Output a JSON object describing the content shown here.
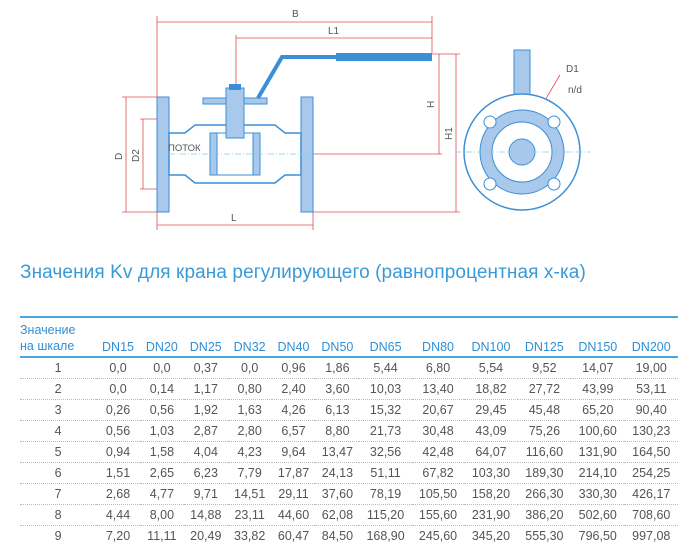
{
  "drawing": {
    "labels": {
      "B": "B",
      "L1": "L1",
      "H": "H",
      "H1": "H1",
      "D": "D",
      "D2": "D2",
      "flow": "ПОТОК",
      "L": "L",
      "D1": "D1",
      "nd": "n/d"
    },
    "colors": {
      "body": "#3b8fd6",
      "fill": "#a9c9ec",
      "dimension": "#e04a5a"
    }
  },
  "title": "Значения Kv для крана регулирующего (равнопроцентная х-ка)",
  "table": {
    "header_first_line1": "Значение",
    "header_first_line2": "на шкале",
    "columns": [
      "DN15",
      "DN20",
      "DN25",
      "DN32",
      "DN40",
      "DN50",
      "DN65",
      "DN80",
      "DN100",
      "DN125",
      "DN150",
      "DN200"
    ],
    "rows": [
      {
        "scale": "1",
        "values": [
          "0,0",
          "0,0",
          "0,37",
          "0,0",
          "0,96",
          "1,86",
          "5,44",
          "6,80",
          "5,54",
          "9,52",
          "14,07",
          "19,00"
        ]
      },
      {
        "scale": "2",
        "values": [
          "0,0",
          "0,14",
          "1,17",
          "0,80",
          "2,40",
          "3,60",
          "10,03",
          "13,40",
          "18,82",
          "27,72",
          "43,99",
          "53,11"
        ]
      },
      {
        "scale": "3",
        "values": [
          "0,26",
          "0,56",
          "1,92",
          "1,63",
          "4,26",
          "6,13",
          "15,32",
          "20,67",
          "29,45",
          "45,48",
          "65,20",
          "90,40"
        ]
      },
      {
        "scale": "4",
        "values": [
          "0,56",
          "1,03",
          "2,87",
          "2,80",
          "6,57",
          "8,80",
          "21,73",
          "30,48",
          "43,09",
          "75,26",
          "100,60",
          "130,23"
        ]
      },
      {
        "scale": "5",
        "values": [
          "0,94",
          "1,58",
          "4,04",
          "4,23",
          "9,64",
          "13,47",
          "32,56",
          "42,48",
          "64,07",
          "116,60",
          "131,90",
          "164,50"
        ]
      },
      {
        "scale": "6",
        "values": [
          "1,51",
          "2,65",
          "6,23",
          "7,79",
          "17,87",
          "24,13",
          "51,11",
          "67,82",
          "103,30",
          "189,30",
          "214,10",
          "254,25"
        ]
      },
      {
        "scale": "7",
        "values": [
          "2,68",
          "4,77",
          "9,71",
          "14,51",
          "29,11",
          "37,60",
          "78,19",
          "105,50",
          "158,20",
          "266,30",
          "330,30",
          "426,17"
        ]
      },
      {
        "scale": "8",
        "values": [
          "4,44",
          "8,00",
          "14,88",
          "23,11",
          "44,60",
          "62,08",
          "115,20",
          "155,60",
          "231,90",
          "386,20",
          "502,60",
          "708,60"
        ]
      },
      {
        "scale": "9",
        "values": [
          "7,20",
          "11,11",
          "20,49",
          "33,82",
          "60,47",
          "84,50",
          "168,90",
          "245,60",
          "345,20",
          "555,30",
          "796,50",
          "997,08"
        ]
      }
    ]
  }
}
